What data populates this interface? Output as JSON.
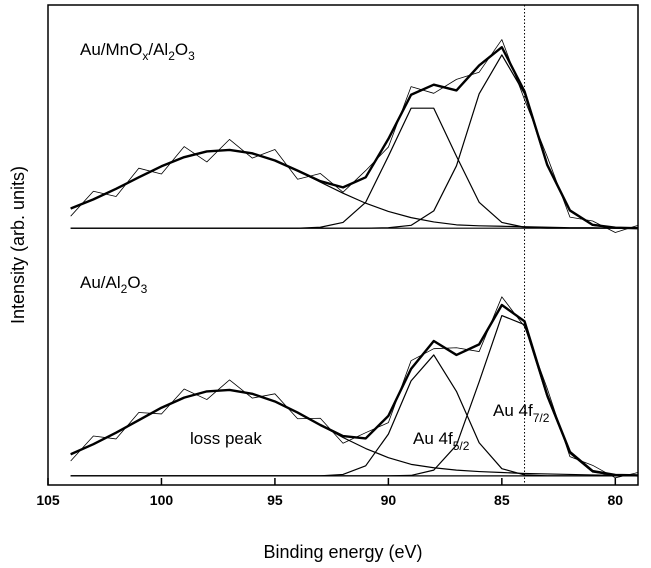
{
  "chart_data": {
    "type": "line",
    "xlabel": "Binding energy (eV)",
    "ylabel": "Intensity (arb. units)",
    "xlim": [
      105,
      79
    ],
    "ylim": [
      0,
      100
    ],
    "xticks": [
      105,
      100,
      95,
      90,
      85,
      80
    ],
    "reference_line_x": 84,
    "annotations": [
      [
        "Au/MnO",
        "x",
        "/Al",
        "2",
        "O",
        "3"
      ],
      [
        "Au/Al",
        "2",
        "O",
        "3"
      ],
      [
        "loss peak"
      ],
      [
        "Au 4f",
        "5/2"
      ],
      [
        "Au 4f",
        "7/2"
      ]
    ],
    "x": [
      104,
      103,
      102,
      101,
      100,
      99,
      98,
      97,
      96,
      95,
      94,
      93,
      92,
      91,
      90,
      89,
      88,
      87,
      86,
      85,
      84,
      83,
      82,
      81,
      80,
      79
    ],
    "series": [
      {
        "kind": "data",
        "color": "#000000",
        "values": [
          56.0,
          61.2,
          60.1,
          66.0,
          64.8,
          70.5,
          67.3,
          72.0,
          68.1,
          69.9,
          63.7,
          64.9,
          61.0,
          65.5,
          70.4,
          83.0,
          81.6,
          84.5,
          86.0,
          92.8,
          80.3,
          68.4,
          55.8,
          55.0,
          52.6,
          54.1
        ]
      },
      {
        "kind": "component",
        "color": "#000000",
        "values": [
          53.5,
          53.5,
          53.5,
          53.5,
          53.5,
          53.5,
          53.5,
          53.5,
          53.5,
          53.5,
          53.5,
          53.5,
          53.5,
          53.5,
          53.5,
          53.5,
          53.5,
          53.5,
          53.5,
          53.5,
          53.5,
          53.5,
          53.5,
          53.5,
          53.5,
          53.5
        ]
      },
      {
        "kind": "component",
        "color": "#000000",
        "values": [
          57.6,
          59.5,
          61.7,
          64.1,
          66.4,
          68.3,
          69.5,
          69.8,
          69.1,
          67.6,
          65.5,
          63.1,
          60.8,
          58.7,
          57.0,
          55.7,
          54.8,
          54.2,
          54.0,
          53.9,
          53.8,
          53.7,
          53.6,
          53.6,
          53.5,
          53.5
        ]
      },
      {
        "kind": "component",
        "color": "#000000",
        "values": [
          53.5,
          53.5,
          53.5,
          53.5,
          53.5,
          53.5,
          53.5,
          53.5,
          53.5,
          53.5,
          53.5,
          53.7,
          54.7,
          58.9,
          68.5,
          78.5,
          78.5,
          68.5,
          58.9,
          54.7,
          53.7,
          53.5,
          53.5,
          53.5,
          53.5,
          53.5
        ]
      },
      {
        "kind": "component",
        "color": "#000000",
        "values": [
          53.5,
          53.5,
          53.5,
          53.5,
          53.5,
          53.5,
          53.5,
          53.5,
          53.5,
          53.5,
          53.5,
          53.5,
          53.5,
          53.5,
          53.6,
          54.1,
          57.1,
          66.5,
          81.5,
          89.6,
          81.5,
          66.5,
          57.1,
          54.1,
          53.6,
          53.5
        ]
      },
      {
        "kind": "envelope",
        "color": "#000000",
        "values": [
          57.6,
          59.5,
          61.7,
          64.1,
          66.4,
          68.3,
          69.5,
          69.8,
          69.1,
          67.6,
          65.5,
          63.3,
          62.0,
          64.1,
          72.1,
          81.3,
          83.4,
          82.2,
          87.4,
          91.2,
          82.0,
          66.7,
          57.2,
          54.2,
          53.6,
          53.5
        ]
      },
      {
        "kind": "data",
        "color": "#000000",
        "values": [
          5.0,
          10.2,
          9.6,
          15.1,
          14.8,
          20.0,
          17.8,
          21.9,
          18.1,
          19.0,
          13.8,
          13.9,
          8.7,
          10.9,
          13.0,
          25.9,
          28.4,
          28.6,
          27.8,
          39.2,
          33.0,
          20.1,
          5.9,
          4.1,
          1.5,
          2.6
        ]
      },
      {
        "kind": "component",
        "color": "#000000",
        "values": [
          1.9,
          1.9,
          1.9,
          1.9,
          1.9,
          1.9,
          1.9,
          1.9,
          1.9,
          1.9,
          1.9,
          1.9,
          1.9,
          1.9,
          1.9,
          1.9,
          1.9,
          1.9,
          1.9,
          1.9,
          1.9,
          1.9,
          1.9,
          1.9,
          1.9,
          1.9
        ]
      },
      {
        "kind": "component",
        "color": "#000000",
        "values": [
          6.4,
          8.5,
          10.9,
          13.5,
          16.1,
          18.2,
          19.5,
          19.8,
          19.0,
          17.4,
          15.1,
          12.5,
          9.9,
          7.6,
          5.7,
          4.3,
          3.6,
          3.1,
          2.8,
          2.6,
          2.4,
          2.3,
          2.2,
          2.1,
          2.0,
          2.0
        ]
      },
      {
        "kind": "component",
        "color": "#000000",
        "values": [
          1.9,
          1.9,
          1.9,
          1.9,
          1.9,
          1.9,
          1.9,
          1.9,
          1.9,
          1.9,
          1.9,
          1.9,
          2.2,
          4.0,
          10.6,
          21.7,
          27.1,
          19.5,
          8.8,
          3.4,
          2.1,
          1.9,
          1.9,
          1.9,
          1.9,
          1.9
        ]
      },
      {
        "kind": "component",
        "color": "#000000",
        "values": [
          1.9,
          1.9,
          1.9,
          1.9,
          1.9,
          1.9,
          1.9,
          1.9,
          1.9,
          1.9,
          1.9,
          1.9,
          1.9,
          1.9,
          1.9,
          2.0,
          3.1,
          8.3,
          21.5,
          35.3,
          33.4,
          18.3,
          6.6,
          2.7,
          2.0,
          1.9
        ]
      },
      {
        "kind": "envelope",
        "color": "#000000",
        "values": [
          6.4,
          8.5,
          10.9,
          13.5,
          16.1,
          18.2,
          19.5,
          19.8,
          19.0,
          17.4,
          15.1,
          12.5,
          10.2,
          9.7,
          14.4,
          24.2,
          30.0,
          27.1,
          29.3,
          37.5,
          34.1,
          18.7,
          6.9,
          2.9,
          2.1,
          2.0
        ]
      }
    ]
  }
}
